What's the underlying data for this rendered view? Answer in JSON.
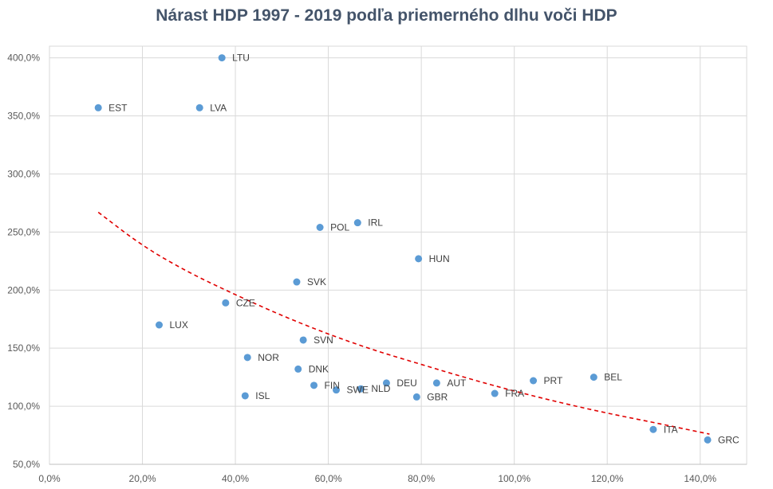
{
  "chart_data": {
    "type": "scatter",
    "title": "Nárast HDP 1997 - 2019 podľa priemerného dlhu voči HDP",
    "xlabel": "",
    "ylabel": "",
    "xlim": [
      0,
      150
    ],
    "ylim": [
      50,
      410
    ],
    "x_ticks": [
      0,
      20,
      40,
      60,
      80,
      100,
      120,
      140
    ],
    "y_ticks": [
      50,
      100,
      150,
      200,
      250,
      300,
      350,
      400
    ],
    "x_tick_labels": [
      "0,0%",
      "20,0%",
      "40,0%",
      "60,0%",
      "80,0%",
      "100,0%",
      "120,0%",
      "140,0%"
    ],
    "y_tick_labels": [
      "50,0%",
      "100,0%",
      "150,0%",
      "200,0%",
      "250,0%",
      "300,0%",
      "350,0%",
      "400,0%"
    ],
    "grid": true,
    "point_color": "#5b9bd5",
    "trend_color": "#e00000",
    "trendline": {
      "type": "power-like curve",
      "points": [
        [
          10.5,
          267
        ],
        [
          20,
          238
        ],
        [
          30,
          215
        ],
        [
          40,
          196
        ],
        [
          50,
          178
        ],
        [
          60,
          162
        ],
        [
          70,
          148
        ],
        [
          80,
          136
        ],
        [
          90,
          124
        ],
        [
          100,
          113
        ],
        [
          110,
          103
        ],
        [
          120,
          94
        ],
        [
          130,
          86
        ],
        [
          142,
          76
        ]
      ]
    },
    "points": [
      {
        "label": "EST",
        "x": 10.5,
        "y": 357
      },
      {
        "label": "LVA",
        "x": 32.3,
        "y": 357
      },
      {
        "label": "LTU",
        "x": 37.1,
        "y": 400
      },
      {
        "label": "LUX",
        "x": 23.6,
        "y": 170
      },
      {
        "label": "CZE",
        "x": 37.9,
        "y": 189
      },
      {
        "label": "NOR",
        "x": 42.6,
        "y": 142
      },
      {
        "label": "ISL",
        "x": 42.1,
        "y": 109
      },
      {
        "label": "SVK",
        "x": 53.2,
        "y": 207
      },
      {
        "label": "POL",
        "x": 58.2,
        "y": 254
      },
      {
        "label": "IRL",
        "x": 66.3,
        "y": 258
      },
      {
        "label": "SVN",
        "x": 54.6,
        "y": 157
      },
      {
        "label": "DNK",
        "x": 53.5,
        "y": 132
      },
      {
        "label": "FIN",
        "x": 56.9,
        "y": 118
      },
      {
        "label": "SWE",
        "x": 61.7,
        "y": 114
      },
      {
        "label": "NLD",
        "x": 67.0,
        "y": 115
      },
      {
        "label": "DEU",
        "x": 72.5,
        "y": 120
      },
      {
        "label": "HUN",
        "x": 79.4,
        "y": 227
      },
      {
        "label": "GBR",
        "x": 79.0,
        "y": 108
      },
      {
        "label": "AUT",
        "x": 83.3,
        "y": 120
      },
      {
        "label": "FRA",
        "x": 95.8,
        "y": 111
      },
      {
        "label": "PRT",
        "x": 104.1,
        "y": 122
      },
      {
        "label": "BEL",
        "x": 117.1,
        "y": 125
      },
      {
        "label": "ITA",
        "x": 129.9,
        "y": 80
      },
      {
        "label": "GRC",
        "x": 141.6,
        "y": 71
      }
    ]
  }
}
